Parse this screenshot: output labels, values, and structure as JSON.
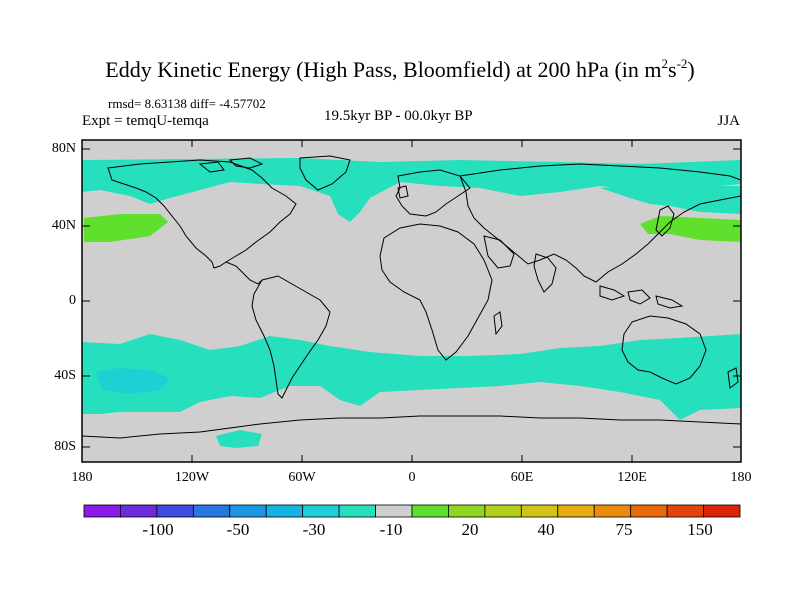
{
  "title": {
    "main": "Eddy Kinetic Energy (High Pass, Bloomfield) at 200 hPa (in m",
    "sup1": "2",
    "mid": "s",
    "sup2": "-2",
    "end": ")"
  },
  "stats_text": "rmsd= 8.63138 diff= -4.57702",
  "experiment_text": "Expt = temqU-temqa",
  "period_text": "19.5kyr BP - 00.0kyr BP",
  "season_text": "JJA",
  "y_axis_labels": [
    "80N",
    "40N",
    "0",
    "40S",
    "80S"
  ],
  "x_axis_labels": [
    "180",
    "120W",
    "60W",
    "0",
    "60E",
    "120E",
    "180"
  ],
  "colorbar": {
    "colors": [
      "#8c1ae8",
      "#6a2cdc",
      "#3d4ee0",
      "#2776e2",
      "#1a98e6",
      "#16b4e2",
      "#1fcfd6",
      "#26e0bd",
      "#cfcfcf",
      "#5ee02c",
      "#8fd622",
      "#b5ce1a",
      "#d2c414",
      "#e6ac10",
      "#ec8c0c",
      "#e86a0a",
      "#e4440a",
      "#de2406"
    ],
    "tick_labels": [
      "-100",
      "-50",
      "-30",
      "-10",
      "20",
      "40",
      "75",
      "150"
    ]
  },
  "map_colors": {
    "land_background": "#cfcfcf",
    "negative_anomaly": "#26e0bd",
    "negative_anomaly_deep": "#1fcfd6",
    "positive_anomaly": "#5ee02c",
    "coastline": "#000000"
  }
}
